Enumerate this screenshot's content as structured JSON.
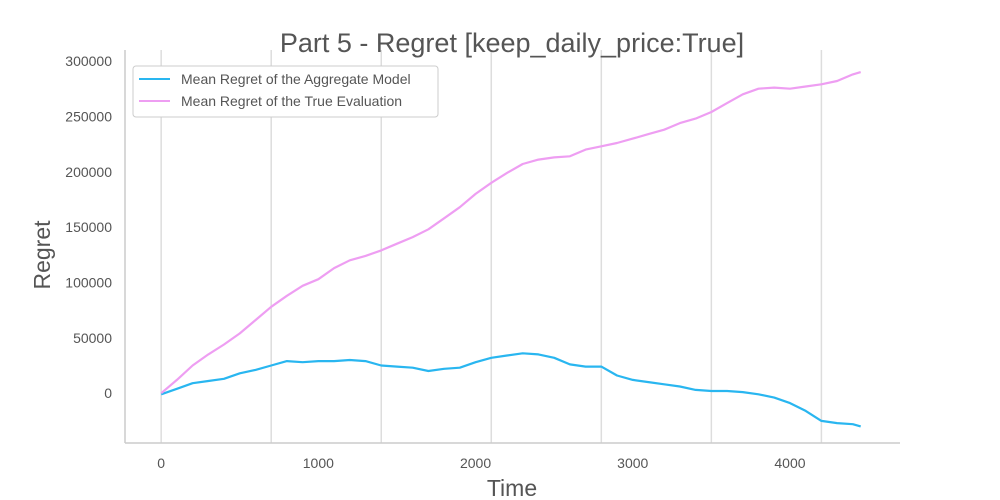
{
  "chart_data": {
    "type": "line",
    "title": "Part 5 - Regret [keep_daily_price:True]",
    "xlabel": "Time",
    "ylabel": "Regret",
    "xlim": [
      -230,
      4700
    ],
    "ylim": [
      -45000,
      310000
    ],
    "x_ticks": [
      0,
      1000,
      2000,
      3000,
      4000
    ],
    "y_ticks": [
      0,
      50000,
      100000,
      150000,
      200000,
      250000,
      300000
    ],
    "x_tick_labels": [
      "0",
      "1000",
      "2000",
      "3000",
      "4000"
    ],
    "y_tick_labels": [
      "0",
      "50000",
      "100000",
      "150000",
      "200000",
      "250000",
      "300000"
    ],
    "vertical_gridlines_at": [
      0,
      700,
      1400,
      2100,
      2800,
      3500,
      4200
    ],
    "legend_position": "top-left",
    "series": [
      {
        "name": "Mean Regret of the Aggregate Model",
        "color": "#29b6f0",
        "x": [
          0,
          100,
          200,
          300,
          400,
          500,
          600,
          700,
          800,
          900,
          1000,
          1100,
          1200,
          1300,
          1400,
          1500,
          1600,
          1700,
          1800,
          1900,
          2000,
          2100,
          2200,
          2300,
          2400,
          2500,
          2600,
          2700,
          2800,
          2900,
          3000,
          3100,
          3200,
          3300,
          3400,
          3500,
          3600,
          3700,
          3800,
          3900,
          4000,
          4100,
          4200,
          4300,
          4400,
          4450
        ],
        "y": [
          -1000,
          4000,
          9000,
          11000,
          13000,
          18000,
          21000,
          25000,
          29000,
          28000,
          29000,
          29000,
          30000,
          29000,
          25000,
          24000,
          23000,
          20000,
          22000,
          23000,
          28000,
          32000,
          34000,
          36000,
          35000,
          32000,
          26000,
          24000,
          24000,
          16000,
          12000,
          10000,
          8000,
          6000,
          3000,
          2000,
          2000,
          1000,
          -1000,
          -4000,
          -9000,
          -16000,
          -25000,
          -27000,
          -28000,
          -30000
        ]
      },
      {
        "name": "Mean Regret of the True Evaluation",
        "color": "#ee9ef2",
        "x": [
          0,
          100,
          200,
          300,
          400,
          500,
          600,
          700,
          800,
          900,
          1000,
          1100,
          1200,
          1300,
          1400,
          1500,
          1600,
          1700,
          1800,
          1900,
          2000,
          2100,
          2200,
          2300,
          2400,
          2500,
          2600,
          2700,
          2800,
          2900,
          3000,
          3100,
          3200,
          3300,
          3400,
          3500,
          3600,
          3700,
          3800,
          3900,
          4000,
          4100,
          4200,
          4300,
          4400,
          4450
        ],
        "y": [
          0,
          12000,
          25000,
          35000,
          44000,
          54000,
          66000,
          78000,
          88000,
          97000,
          103000,
          113000,
          120000,
          124000,
          129000,
          135000,
          141000,
          148000,
          158000,
          168000,
          180000,
          190000,
          199000,
          207000,
          211000,
          213000,
          214000,
          220000,
          223000,
          226000,
          230000,
          234000,
          238000,
          244000,
          248000,
          254000,
          262000,
          270000,
          275000,
          276000,
          275000,
          277000,
          279000,
          282000,
          288000,
          290000
        ]
      }
    ]
  }
}
